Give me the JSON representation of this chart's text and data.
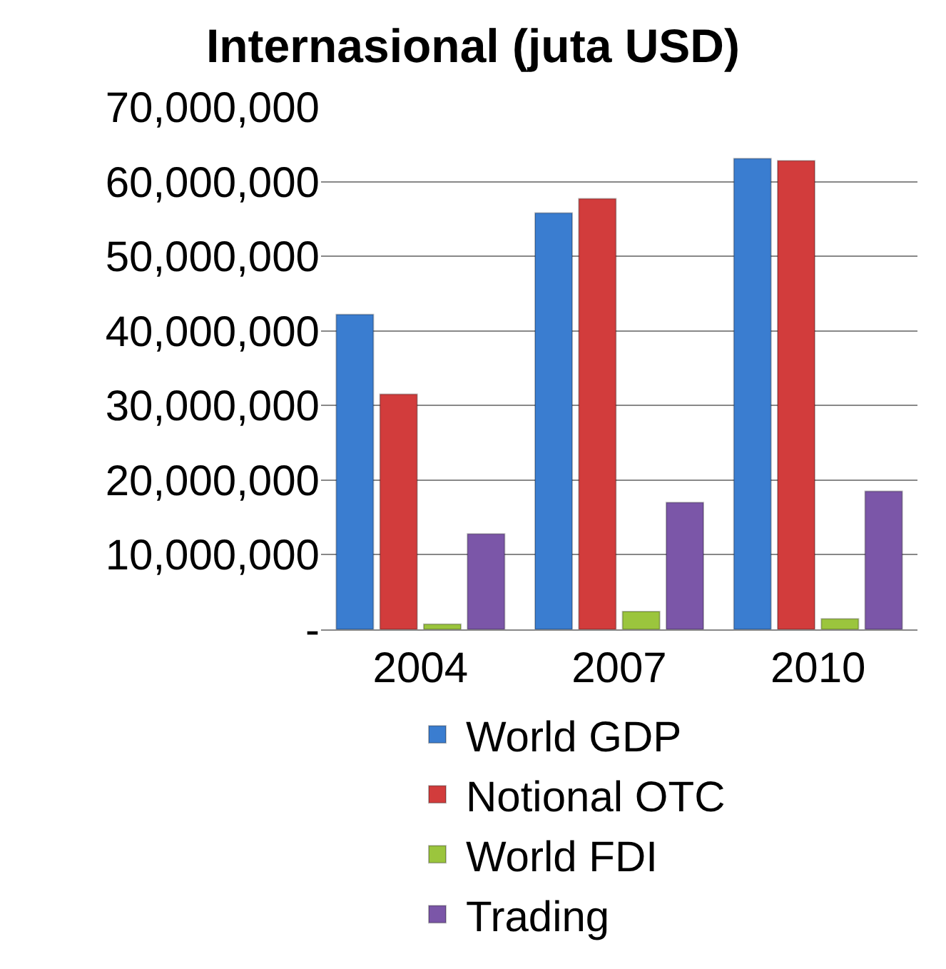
{
  "chart_data": {
    "type": "bar",
    "title": "Internasional (juta USD)",
    "categories": [
      "2004",
      "2007",
      "2010"
    ],
    "series": [
      {
        "name": "World GDP",
        "color": "#3a7dd0",
        "values": [
          42200000,
          55800000,
          63100000
        ]
      },
      {
        "name": "Notional OTC",
        "color": "#d23c3c",
        "values": [
          31500000,
          57700000,
          62800000
        ]
      },
      {
        "name": "World FDI",
        "color": "#9bc53d",
        "values": [
          700000,
          2400000,
          1400000
        ]
      },
      {
        "name": "Trading",
        "color": "#7b56a8",
        "values": [
          12800000,
          17000000,
          18500000
        ]
      }
    ],
    "ylim": [
      0,
      70000000
    ],
    "yticks": [
      {
        "value": 0,
        "label": "-"
      },
      {
        "value": 10000000,
        "label": "10,000,000"
      },
      {
        "value": 20000000,
        "label": "20,000,000"
      },
      {
        "value": 30000000,
        "label": "30,000,000"
      },
      {
        "value": 40000000,
        "label": "40,000,000"
      },
      {
        "value": 50000000,
        "label": "50,000,000"
      },
      {
        "value": 60000000,
        "label": "60,000,000"
      },
      {
        "value": 70000000,
        "label": "70,000,000"
      }
    ],
    "grid": "y",
    "legend": "bottom"
  }
}
